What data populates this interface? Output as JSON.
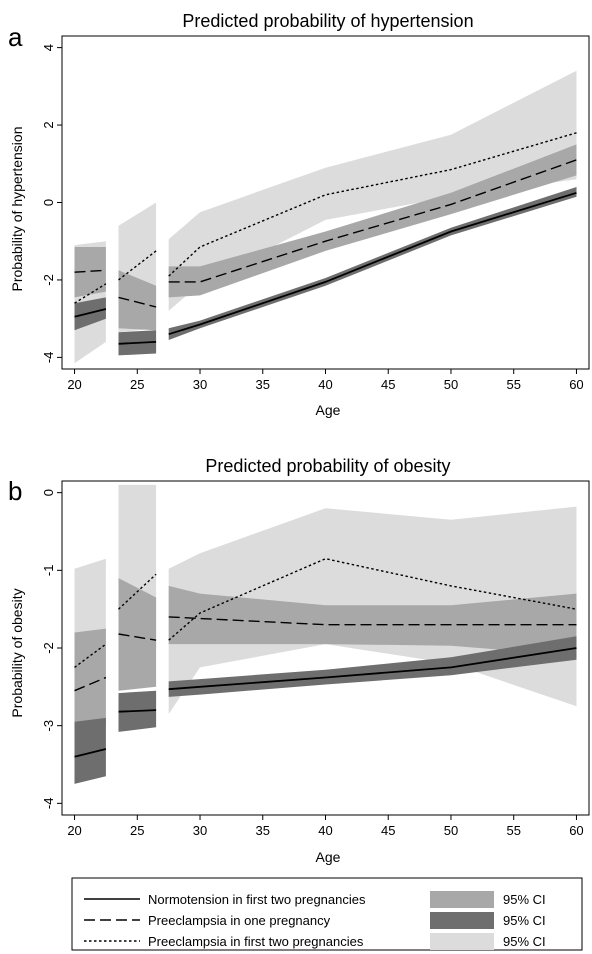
{
  "colors": {
    "band_normotension": "#6e6e6e",
    "band_one_pregnancy": "#a8a8a8",
    "band_two_pregnancies": "#dcdcdc",
    "line": "#000000"
  },
  "chart_data": [
    {
      "type": "line",
      "panel_letter": "a",
      "title": "Predicted probability of hypertension",
      "xlabel": "Age",
      "ylabel": "Probability of hypertension",
      "xlim": [
        19,
        61
      ],
      "ylim": [
        -4.3,
        4.3
      ],
      "xticks": [
        "20",
        "25",
        "30",
        "35",
        "40",
        "45",
        "50",
        "55",
        "60"
      ],
      "yticks": [
        "-4",
        "-2",
        "0",
        "2",
        "4"
      ],
      "grid": false,
      "series": [
        {
          "name": "Normotension in first two pregnancies",
          "style": "solid",
          "segments": [
            {
              "x": [
                20,
                22.5
              ],
              "y": [
                -2.95,
                -2.75
              ],
              "lo": [
                -3.3,
                -3.0
              ],
              "hi": [
                -2.6,
                -2.45
              ]
            },
            {
              "x": [
                23.5,
                26.5
              ],
              "y": [
                -3.65,
                -3.6
              ],
              "lo": [
                -3.95,
                -3.9
              ],
              "hi": [
                -3.35,
                -3.3
              ]
            },
            {
              "x": [
                27.5,
                30,
                40,
                50,
                60
              ],
              "y": [
                -3.4,
                -3.15,
                -2.05,
                -0.75,
                0.25
              ],
              "lo": [
                -3.55,
                -3.25,
                -2.15,
                -0.85,
                0.15
              ],
              "hi": [
                -3.25,
                -3.05,
                -1.95,
                -0.65,
                0.4
              ]
            }
          ]
        },
        {
          "name": "Preeclampsia in one pregnancy",
          "style": "dashed",
          "segments": [
            {
              "x": [
                20,
                22.5
              ],
              "y": [
                -1.8,
                -1.75
              ],
              "lo": [
                -2.45,
                -2.3
              ],
              "hi": [
                -1.15,
                -1.15
              ]
            },
            {
              "x": [
                23.5,
                26.5
              ],
              "y": [
                -2.45,
                -2.7
              ],
              "lo": [
                -3.25,
                -3.3
              ],
              "hi": [
                -1.75,
                -2.15
              ]
            },
            {
              "x": [
                27.5,
                30,
                40,
                50,
                60
              ],
              "y": [
                -2.05,
                -2.05,
                -1.0,
                -0.05,
                1.1
              ],
              "lo": [
                -2.45,
                -2.4,
                -1.25,
                -0.3,
                0.7
              ],
              "hi": [
                -1.65,
                -1.65,
                -0.75,
                0.25,
                1.5
              ]
            }
          ]
        },
        {
          "name": "Preeclampsia in first two pregnancies",
          "style": "dotted",
          "segments": [
            {
              "x": [
                20,
                22.5
              ],
              "y": [
                -2.6,
                -2.1
              ],
              "lo": [
                -4.15,
                -3.6
              ],
              "hi": [
                -1.1,
                -1.0
              ]
            },
            {
              "x": [
                23.5,
                26.5
              ],
              "y": [
                -2.0,
                -1.25
              ],
              "lo": [
                -3.35,
                -3.25
              ],
              "hi": [
                -0.6,
                0.0
              ]
            },
            {
              "x": [
                27.5,
                30,
                40,
                50,
                60
              ],
              "y": [
                -1.9,
                -1.15,
                0.2,
                0.85,
                1.8
              ],
              "lo": [
                -2.8,
                -2.1,
                -0.45,
                0.15,
                0.6
              ],
              "hi": [
                -0.95,
                -0.25,
                0.9,
                1.75,
                3.4
              ]
            }
          ]
        }
      ]
    },
    {
      "type": "line",
      "panel_letter": "b",
      "title": "Predicted probability of obesity",
      "xlabel": "Age",
      "ylabel": "Probability of obesity",
      "xlim": [
        19,
        61
      ],
      "ylim": [
        -4.15,
        0.15
      ],
      "xticks": [
        "20",
        "25",
        "30",
        "35",
        "40",
        "45",
        "50",
        "55",
        "60"
      ],
      "yticks": [
        "-4",
        "-3",
        "-2",
        "-1",
        "0"
      ],
      "grid": false,
      "series": [
        {
          "name": "Normotension in first two pregnancies",
          "style": "solid",
          "segments": [
            {
              "x": [
                20,
                22.5
              ],
              "y": [
                -3.4,
                -3.3
              ],
              "lo": [
                -3.75,
                -3.65
              ],
              "hi": [
                -2.95,
                -2.9
              ]
            },
            {
              "x": [
                23.5,
                26.5
              ],
              "y": [
                -2.82,
                -2.8
              ],
              "lo": [
                -3.08,
                -3.02
              ],
              "hi": [
                -2.58,
                -2.55
              ]
            },
            {
              "x": [
                27.5,
                30,
                40,
                50,
                60
              ],
              "y": [
                -2.53,
                -2.5,
                -2.38,
                -2.25,
                -2.0
              ],
              "lo": [
                -2.63,
                -2.6,
                -2.47,
                -2.35,
                -2.15
              ],
              "hi": [
                -2.43,
                -2.4,
                -2.28,
                -2.12,
                -1.85
              ]
            }
          ]
        },
        {
          "name": "Preeclampsia in one pregnancy",
          "style": "dashed",
          "segments": [
            {
              "x": [
                20,
                22.5
              ],
              "y": [
                -2.55,
                -2.38
              ],
              "lo": [
                -3.25,
                -3.0
              ],
              "hi": [
                -1.8,
                -1.75
              ]
            },
            {
              "x": [
                23.5,
                26.5
              ],
              "y": [
                -1.82,
                -1.9
              ],
              "lo": [
                -2.55,
                -2.5
              ],
              "hi": [
                -1.1,
                -1.35
              ]
            },
            {
              "x": [
                27.5,
                30,
                40,
                50,
                60
              ],
              "y": [
                -1.6,
                -1.62,
                -1.7,
                -1.7,
                -1.7
              ],
              "lo": [
                -1.95,
                -1.95,
                -1.95,
                -1.97,
                -2.1
              ],
              "hi": [
                -1.2,
                -1.3,
                -1.45,
                -1.45,
                -1.3
              ]
            }
          ]
        },
        {
          "name": "Preeclampsia in first two pregnancies",
          "style": "dotted",
          "segments": [
            {
              "x": [
                20,
                22.5
              ],
              "y": [
                -2.25,
                -1.95
              ],
              "lo": [
                -3.4,
                -3.2
              ],
              "hi": [
                -0.98,
                -0.85
              ]
            },
            {
              "x": [
                23.5,
                26.5
              ],
              "y": [
                -1.5,
                -1.05
              ],
              "lo": [
                -2.5,
                -2.0
              ],
              "hi": [
                0.1,
                0.1
              ]
            },
            {
              "x": [
                27.5,
                30,
                40,
                50,
                60
              ],
              "y": [
                -1.9,
                -1.55,
                -0.85,
                -1.2,
                -1.5
              ],
              "lo": [
                -2.85,
                -2.25,
                -1.95,
                -2.2,
                -2.75
              ],
              "hi": [
                -0.98,
                -0.78,
                -0.2,
                -0.35,
                -0.18
              ]
            }
          ]
        }
      ]
    }
  ],
  "legend": {
    "lines": [
      {
        "label": "Normotension in first two pregnancies",
        "style": "solid"
      },
      {
        "label": "Preeclampsia in one pregnancy",
        "style": "dashed"
      },
      {
        "label": "Preeclampsia in first two pregnancies",
        "style": "dotted"
      }
    ],
    "bands": [
      {
        "label": "95% CI",
        "color": "#a8a8a8"
      },
      {
        "label": "95% CI",
        "color": "#6e6e6e"
      },
      {
        "label": "95% CI",
        "color": "#dcdcdc"
      }
    ]
  }
}
